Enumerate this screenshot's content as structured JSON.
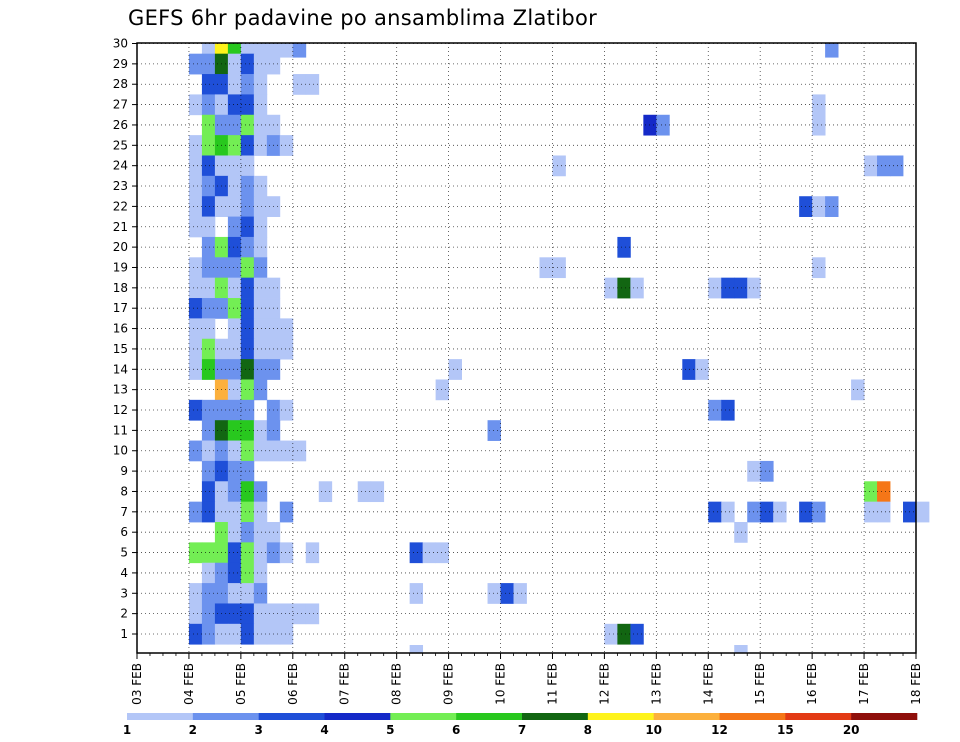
{
  "chart_data": {
    "type": "heatmap",
    "title": "GEFS 6hr padavine po ansamblima Zlatibor",
    "xlabel": "",
    "ylabel": "",
    "x_tick_labels": [
      "03 FEB",
      "04 FEB",
      "05 FEB",
      "06 FEB",
      "07 FEB",
      "08 FEB",
      "09 FEB",
      "10 FEB",
      "11 FEB",
      "12 FEB",
      "13 FEB",
      "14 FEB",
      "15 FEB",
      "16 FEB",
      "17 FEB",
      "18 FEB"
    ],
    "y_tick_labels": [
      "1",
      "2",
      "3",
      "4",
      "5",
      "6",
      "7",
      "8",
      "9",
      "10",
      "11",
      "12",
      "13",
      "14",
      "15",
      "16",
      "17",
      "18",
      "19",
      "20",
      "21",
      "22",
      "23",
      "24",
      "25",
      "26",
      "27",
      "28",
      "29",
      "30"
    ],
    "time_step_hours": 6,
    "grid": true,
    "colorbar": {
      "position": "bottom",
      "labels": [
        "1",
        "2",
        "3",
        "4",
        "5",
        "6",
        "7",
        "8",
        "10",
        "12",
        "15",
        "20"
      ],
      "colors": [
        "#b3c6f7",
        "#6c92ee",
        "#1f4fd8",
        "#1429c8",
        "#73ee54",
        "#28c81e",
        "#126612",
        "#fef31b",
        "#fcb03c",
        "#f57617",
        "#e33a14",
        "#8f0f0b"
      ]
    },
    "cells": [
      {
        "m": 30,
        "t": [
          [
            5,
            1
          ],
          [
            6,
            8
          ],
          [
            7,
            6
          ],
          [
            8,
            1
          ],
          [
            9,
            1
          ],
          [
            10,
            1
          ],
          [
            11,
            1
          ],
          [
            12,
            2
          ],
          [
            53,
            2
          ]
        ]
      },
      {
        "m": 29,
        "t": [
          [
            4,
            2
          ],
          [
            5,
            2
          ],
          [
            6,
            7
          ],
          [
            7,
            1
          ],
          [
            8,
            3
          ],
          [
            9,
            1
          ],
          [
            10,
            1
          ]
        ]
      },
      {
        "m": 28,
        "t": [
          [
            5,
            3
          ],
          [
            6,
            3
          ],
          [
            7,
            1
          ],
          [
            8,
            2
          ],
          [
            9,
            1
          ],
          [
            12,
            1
          ],
          [
            13,
            1
          ]
        ]
      },
      {
        "m": 27,
        "t": [
          [
            4,
            1
          ],
          [
            5,
            2
          ],
          [
            6,
            1
          ],
          [
            7,
            3
          ],
          [
            8,
            3
          ],
          [
            9,
            1
          ],
          [
            52,
            1
          ]
        ]
      },
      {
        "m": 26,
        "t": [
          [
            5,
            5
          ],
          [
            6,
            2
          ],
          [
            7,
            2
          ],
          [
            8,
            5
          ],
          [
            9,
            1
          ],
          [
            10,
            1
          ],
          [
            39,
            4
          ],
          [
            40,
            2
          ],
          [
            52,
            1
          ]
        ]
      },
      {
        "m": 25,
        "t": [
          [
            4,
            1
          ],
          [
            5,
            5
          ],
          [
            6,
            6
          ],
          [
            7,
            5
          ],
          [
            8,
            3
          ],
          [
            9,
            1
          ],
          [
            10,
            2
          ],
          [
            11,
            1
          ]
        ]
      },
      {
        "m": 24,
        "t": [
          [
            4,
            1
          ],
          [
            5,
            3
          ],
          [
            6,
            1
          ],
          [
            7,
            1
          ],
          [
            8,
            1
          ],
          [
            32,
            1
          ],
          [
            56,
            1
          ],
          [
            57,
            2
          ],
          [
            58,
            2
          ]
        ]
      },
      {
        "m": 23,
        "t": [
          [
            4,
            1
          ],
          [
            5,
            2
          ],
          [
            6,
            3
          ],
          [
            7,
            1
          ],
          [
            8,
            2
          ],
          [
            9,
            1
          ]
        ]
      },
      {
        "m": 22,
        "t": [
          [
            4,
            1
          ],
          [
            5,
            3
          ],
          [
            6,
            1
          ],
          [
            7,
            1
          ],
          [
            8,
            2
          ],
          [
            9,
            1
          ],
          [
            10,
            1
          ],
          [
            51,
            3
          ],
          [
            52,
            1
          ],
          [
            53,
            2
          ]
        ]
      },
      {
        "m": 21,
        "t": [
          [
            4,
            1
          ],
          [
            5,
            1
          ],
          [
            7,
            2
          ],
          [
            8,
            3
          ],
          [
            9,
            1
          ]
        ]
      },
      {
        "m": 20,
        "t": [
          [
            5,
            2
          ],
          [
            6,
            5
          ],
          [
            7,
            3
          ],
          [
            8,
            2
          ],
          [
            9,
            1
          ],
          [
            37,
            3
          ]
        ]
      },
      {
        "m": 19,
        "t": [
          [
            4,
            1
          ],
          [
            5,
            2
          ],
          [
            6,
            2
          ],
          [
            7,
            2
          ],
          [
            8,
            5
          ],
          [
            9,
            2
          ],
          [
            31,
            1
          ],
          [
            32,
            1
          ],
          [
            52,
            1
          ]
        ]
      },
      {
        "m": 18,
        "t": [
          [
            4,
            1
          ],
          [
            5,
            1
          ],
          [
            6,
            5
          ],
          [
            7,
            1
          ],
          [
            8,
            3
          ],
          [
            9,
            1
          ],
          [
            10,
            1
          ],
          [
            36,
            1
          ],
          [
            37,
            7
          ],
          [
            38,
            1
          ],
          [
            44,
            1
          ],
          [
            45,
            3
          ],
          [
            46,
            3
          ],
          [
            47,
            1
          ]
        ]
      },
      {
        "m": 17,
        "t": [
          [
            4,
            3
          ],
          [
            5,
            2
          ],
          [
            6,
            2
          ],
          [
            7,
            5
          ],
          [
            8,
            3
          ],
          [
            9,
            1
          ],
          [
            10,
            1
          ]
        ]
      },
      {
        "m": 16,
        "t": [
          [
            4,
            1
          ],
          [
            5,
            1
          ],
          [
            7,
            1
          ],
          [
            8,
            3
          ],
          [
            9,
            1
          ],
          [
            10,
            1
          ],
          [
            11,
            1
          ]
        ]
      },
      {
        "m": 15,
        "t": [
          [
            4,
            1
          ],
          [
            5,
            5
          ],
          [
            6,
            1
          ],
          [
            7,
            1
          ],
          [
            8,
            3
          ],
          [
            9,
            1
          ],
          [
            10,
            1
          ],
          [
            11,
            1
          ]
        ]
      },
      {
        "m": 14,
        "t": [
          [
            4,
            1
          ],
          [
            5,
            6
          ],
          [
            6,
            2
          ],
          [
            7,
            2
          ],
          [
            8,
            7
          ],
          [
            9,
            2
          ],
          [
            10,
            2
          ],
          [
            24,
            1
          ],
          [
            42,
            3
          ],
          [
            43,
            1
          ]
        ]
      },
      {
        "m": 13,
        "t": [
          [
            6,
            9
          ],
          [
            7,
            1
          ],
          [
            8,
            5
          ],
          [
            9,
            2
          ],
          [
            23,
            1
          ],
          [
            55,
            1
          ]
        ]
      },
      {
        "m": 12,
        "t": [
          [
            4,
            3
          ],
          [
            5,
            2
          ],
          [
            6,
            2
          ],
          [
            7,
            2
          ],
          [
            8,
            2
          ],
          [
            10,
            2
          ],
          [
            11,
            1
          ],
          [
            44,
            2
          ],
          [
            45,
            3
          ]
        ]
      },
      {
        "m": 11,
        "t": [
          [
            5,
            2
          ],
          [
            6,
            7
          ],
          [
            7,
            6
          ],
          [
            8,
            6
          ],
          [
            9,
            1
          ],
          [
            10,
            2
          ],
          [
            27,
            2
          ]
        ]
      },
      {
        "m": 10,
        "t": [
          [
            4,
            2
          ],
          [
            5,
            1
          ],
          [
            6,
            2
          ],
          [
            7,
            1
          ],
          [
            8,
            5
          ],
          [
            9,
            1
          ],
          [
            10,
            1
          ],
          [
            11,
            1
          ],
          [
            12,
            1
          ]
        ]
      },
      {
        "m": 9,
        "t": [
          [
            5,
            2
          ],
          [
            6,
            3
          ],
          [
            7,
            2
          ],
          [
            8,
            2
          ],
          [
            47,
            1
          ],
          [
            48,
            2
          ]
        ]
      },
      {
        "m": 8,
        "t": [
          [
            5,
            3
          ],
          [
            6,
            1
          ],
          [
            7,
            2
          ],
          [
            8,
            6
          ],
          [
            9,
            2
          ],
          [
            14,
            1
          ],
          [
            17,
            1
          ],
          [
            18,
            1
          ],
          [
            56,
            5
          ],
          [
            57,
            10
          ]
        ]
      },
      {
        "m": 7,
        "t": [
          [
            4,
            2
          ],
          [
            5,
            3
          ],
          [
            6,
            1
          ],
          [
            7,
            1
          ],
          [
            8,
            5
          ],
          [
            9,
            1
          ],
          [
            11,
            2
          ],
          [
            44,
            3
          ],
          [
            45,
            1
          ],
          [
            47,
            2
          ],
          [
            48,
            3
          ],
          [
            49,
            1
          ],
          [
            51,
            3
          ],
          [
            52,
            2
          ],
          [
            56,
            1
          ],
          [
            57,
            1
          ],
          [
            59,
            3
          ],
          [
            60,
            1
          ]
        ]
      },
      {
        "m": 6,
        "t": [
          [
            6,
            5
          ],
          [
            7,
            1
          ],
          [
            8,
            2
          ],
          [
            9,
            1
          ],
          [
            10,
            1
          ],
          [
            46,
            1
          ]
        ]
      },
      {
        "m": 5,
        "t": [
          [
            4,
            5
          ],
          [
            5,
            5
          ],
          [
            6,
            5
          ],
          [
            7,
            3
          ],
          [
            8,
            5
          ],
          [
            9,
            1
          ],
          [
            10,
            2
          ],
          [
            11,
            1
          ],
          [
            13,
            1
          ],
          [
            21,
            3
          ],
          [
            22,
            1
          ],
          [
            23,
            1
          ]
        ]
      },
      {
        "m": 4,
        "t": [
          [
            5,
            1
          ],
          [
            6,
            2
          ],
          [
            7,
            3
          ],
          [
            8,
            5
          ],
          [
            9,
            1
          ]
        ]
      },
      {
        "m": 3,
        "t": [
          [
            4,
            1
          ],
          [
            5,
            2
          ],
          [
            6,
            2
          ],
          [
            7,
            1
          ],
          [
            8,
            1
          ],
          [
            9,
            2
          ],
          [
            21,
            1
          ],
          [
            27,
            1
          ],
          [
            28,
            3
          ],
          [
            29,
            1
          ]
        ]
      },
      {
        "m": 2,
        "t": [
          [
            4,
            1
          ],
          [
            5,
            2
          ],
          [
            6,
            3
          ],
          [
            7,
            3
          ],
          [
            8,
            3
          ],
          [
            9,
            1
          ],
          [
            10,
            1
          ],
          [
            11,
            1
          ],
          [
            12,
            1
          ],
          [
            13,
            1
          ]
        ]
      },
      {
        "m": 1,
        "t": [
          [
            4,
            3
          ],
          [
            5,
            2
          ],
          [
            6,
            1
          ],
          [
            7,
            1
          ],
          [
            8,
            3
          ],
          [
            9,
            1
          ],
          [
            10,
            1
          ],
          [
            11,
            1
          ],
          [
            36,
            1
          ],
          [
            37,
            7
          ],
          [
            38,
            3
          ]
        ]
      },
      {
        "m": 0,
        "t": [
          [
            46,
            1
          ],
          [
            21,
            1
          ]
        ]
      }
    ]
  }
}
